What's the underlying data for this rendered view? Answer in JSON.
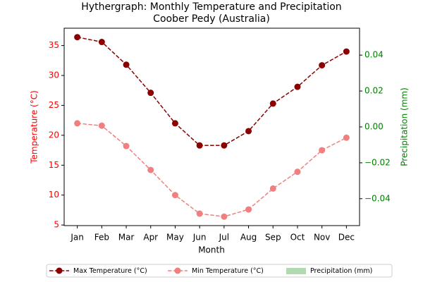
{
  "chart_data": {
    "type": "line",
    "title": "Hythergraph: Monthly Temperature and Precipitation",
    "subtitle": "Coober Pedy (Australia)",
    "x_label": "Month",
    "y_label": "Temperature (°C)",
    "y2_label": "Precipitation (mm)",
    "y_label_color": "red",
    "y2_label_color": "green",
    "categories": [
      "Jan",
      "Feb",
      "Mar",
      "Apr",
      "May",
      "Jun",
      "Jul",
      "Aug",
      "Sep",
      "Oct",
      "Nov",
      "Dec"
    ],
    "series": [
      {
        "name": "Max Temperature (°C)",
        "color": "#8b0000",
        "type": "line",
        "axis": "y",
        "values": [
          36.4,
          35.6,
          31.8,
          27.1,
          22.0,
          18.3,
          18.3,
          20.7,
          25.3,
          28.1,
          31.7,
          34.0
        ]
      },
      {
        "name": "Min Temperature (°C)",
        "color": "#f08080",
        "type": "line",
        "axis": "y",
        "values": [
          22.0,
          21.6,
          18.2,
          14.2,
          10.0,
          6.9,
          6.4,
          7.6,
          11.1,
          13.9,
          17.5,
          19.6
        ]
      },
      {
        "name": "Precipitation (mm)",
        "color": "green",
        "type": "bar",
        "axis": "y2",
        "values": [
          0,
          0,
          0,
          0,
          0,
          0,
          0,
          0,
          0,
          0,
          0,
          0
        ]
      }
    ],
    "ylim": [
      4.9,
      37.9
    ],
    "yticks": [
      5,
      10,
      15,
      20,
      25,
      30,
      35
    ],
    "y2lim": [
      -0.055,
      0.055
    ],
    "y2ticks": [
      {
        "value": -0.04,
        "label": "−0.04"
      },
      {
        "value": -0.02,
        "label": "−0.02"
      },
      {
        "value": 0,
        "label": "0.00"
      },
      {
        "value": 0.02,
        "label": "0.02"
      },
      {
        "value": 0.04,
        "label": "0.04"
      }
    ],
    "legend": "bottom"
  }
}
